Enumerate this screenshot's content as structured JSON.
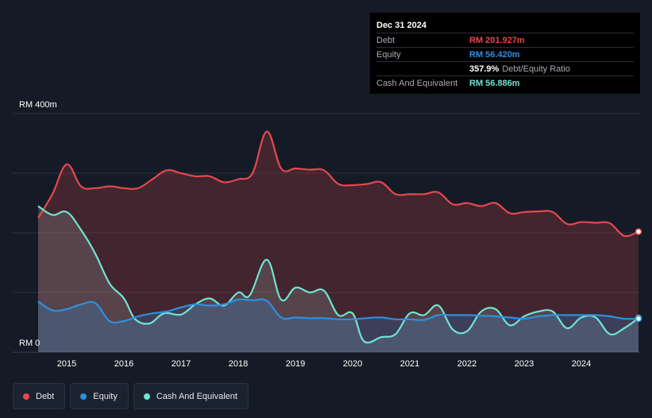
{
  "tooltip": {
    "date": "Dec 31 2024",
    "debt_label": "Debt",
    "debt_value": "RM 201.927m",
    "equity_label": "Equity",
    "equity_value": "RM 56.420m",
    "ratio_value": "357.9%",
    "ratio_label": "Debt/Equity Ratio",
    "cash_label": "Cash And Equivalent",
    "cash_value": "RM 56.886m"
  },
  "legend": [
    {
      "label": "Debt",
      "color": "#e5484d"
    },
    {
      "label": "Equity",
      "color": "#2f8fe0"
    },
    {
      "label": "Cash And Equivalent",
      "color": "#70e3d1"
    }
  ],
  "colors": {
    "debt": "#e5484d",
    "equity": "#2f8fe0",
    "cash": "#70e3d1",
    "background": "#151b26",
    "grid": "#394050"
  },
  "chart_data": {
    "type": "area",
    "y_unit": "RM m",
    "ylim": [
      0,
      400
    ],
    "y_tick_labels": [
      "RM 400m",
      "RM 0"
    ],
    "grid": true,
    "legend_position": "bottom-left",
    "x_tick_labels": [
      "2015",
      "2016",
      "2017",
      "2018",
      "2019",
      "2020",
      "2021",
      "2022",
      "2023",
      "2024"
    ],
    "xlim": [
      2014.5,
      2025.0
    ],
    "series": [
      {
        "name": "Debt",
        "points": [
          [
            2014.5,
            225
          ],
          [
            2014.75,
            265
          ],
          [
            2015.0,
            315
          ],
          [
            2015.25,
            278
          ],
          [
            2015.5,
            275
          ],
          [
            2015.75,
            278
          ],
          [
            2016.0,
            275
          ],
          [
            2016.25,
            275
          ],
          [
            2016.5,
            290
          ],
          [
            2016.75,
            305
          ],
          [
            2017.0,
            300
          ],
          [
            2017.25,
            295
          ],
          [
            2017.5,
            295
          ],
          [
            2017.75,
            285
          ],
          [
            2018.0,
            290
          ],
          [
            2018.25,
            300
          ],
          [
            2018.5,
            370
          ],
          [
            2018.75,
            308
          ],
          [
            2019.0,
            308
          ],
          [
            2019.25,
            306
          ],
          [
            2019.5,
            305
          ],
          [
            2019.75,
            282
          ],
          [
            2020.0,
            280
          ],
          [
            2020.25,
            282
          ],
          [
            2020.5,
            285
          ],
          [
            2020.75,
            265
          ],
          [
            2021.0,
            265
          ],
          [
            2021.25,
            265
          ],
          [
            2021.5,
            268
          ],
          [
            2021.75,
            248
          ],
          [
            2022.0,
            250
          ],
          [
            2022.25,
            245
          ],
          [
            2022.5,
            250
          ],
          [
            2022.75,
            233
          ],
          [
            2023.0,
            235
          ],
          [
            2023.25,
            236
          ],
          [
            2023.5,
            235
          ],
          [
            2023.75,
            215
          ],
          [
            2024.0,
            218
          ],
          [
            2024.25,
            217
          ],
          [
            2024.5,
            216
          ],
          [
            2024.75,
            195
          ],
          [
            2025.0,
            202
          ]
        ]
      },
      {
        "name": "Equity",
        "points": [
          [
            2014.5,
            85
          ],
          [
            2014.75,
            70
          ],
          [
            2015.0,
            72
          ],
          [
            2015.25,
            80
          ],
          [
            2015.5,
            82
          ],
          [
            2015.75,
            52
          ],
          [
            2016.0,
            52
          ],
          [
            2016.25,
            60
          ],
          [
            2016.5,
            65
          ],
          [
            2016.75,
            68
          ],
          [
            2017.0,
            75
          ],
          [
            2017.25,
            80
          ],
          [
            2017.5,
            78
          ],
          [
            2017.75,
            80
          ],
          [
            2018.0,
            88
          ],
          [
            2018.25,
            87
          ],
          [
            2018.5,
            86
          ],
          [
            2018.75,
            58
          ],
          [
            2019.0,
            58
          ],
          [
            2019.25,
            57
          ],
          [
            2019.5,
            57
          ],
          [
            2019.75,
            55
          ],
          [
            2020.0,
            55
          ],
          [
            2020.25,
            57
          ],
          [
            2020.5,
            58
          ],
          [
            2020.75,
            55
          ],
          [
            2021.0,
            55
          ],
          [
            2021.25,
            54
          ],
          [
            2021.5,
            62
          ],
          [
            2021.75,
            62
          ],
          [
            2022.0,
            62
          ],
          [
            2022.25,
            61
          ],
          [
            2022.5,
            60
          ],
          [
            2022.75,
            58
          ],
          [
            2023.0,
            56
          ],
          [
            2023.25,
            60
          ],
          [
            2023.5,
            62
          ],
          [
            2023.75,
            62
          ],
          [
            2024.0,
            62
          ],
          [
            2024.25,
            62
          ],
          [
            2024.5,
            60
          ],
          [
            2024.75,
            56
          ],
          [
            2025.0,
            56
          ]
        ]
      },
      {
        "name": "Cash And Equivalent",
        "points": [
          [
            2014.5,
            245
          ],
          [
            2014.75,
            230
          ],
          [
            2015.0,
            235
          ],
          [
            2015.25,
            205
          ],
          [
            2015.5,
            165
          ],
          [
            2015.75,
            115
          ],
          [
            2016.0,
            90
          ],
          [
            2016.2,
            55
          ],
          [
            2016.45,
            48
          ],
          [
            2016.7,
            65
          ],
          [
            2017.0,
            63
          ],
          [
            2017.25,
            80
          ],
          [
            2017.5,
            90
          ],
          [
            2017.75,
            78
          ],
          [
            2018.0,
            100
          ],
          [
            2018.2,
            95
          ],
          [
            2018.5,
            155
          ],
          [
            2018.75,
            88
          ],
          [
            2019.0,
            108
          ],
          [
            2019.25,
            100
          ],
          [
            2019.5,
            103
          ],
          [
            2019.75,
            62
          ],
          [
            2020.0,
            65
          ],
          [
            2020.2,
            18
          ],
          [
            2020.5,
            25
          ],
          [
            2020.75,
            30
          ],
          [
            2021.0,
            65
          ],
          [
            2021.25,
            62
          ],
          [
            2021.5,
            78
          ],
          [
            2021.75,
            38
          ],
          [
            2022.0,
            35
          ],
          [
            2022.25,
            68
          ],
          [
            2022.5,
            72
          ],
          [
            2022.75,
            45
          ],
          [
            2023.0,
            60
          ],
          [
            2023.25,
            68
          ],
          [
            2023.5,
            68
          ],
          [
            2023.75,
            40
          ],
          [
            2024.0,
            58
          ],
          [
            2024.25,
            58
          ],
          [
            2024.5,
            30
          ],
          [
            2024.75,
            40
          ],
          [
            2025.0,
            57
          ]
        ]
      }
    ]
  }
}
